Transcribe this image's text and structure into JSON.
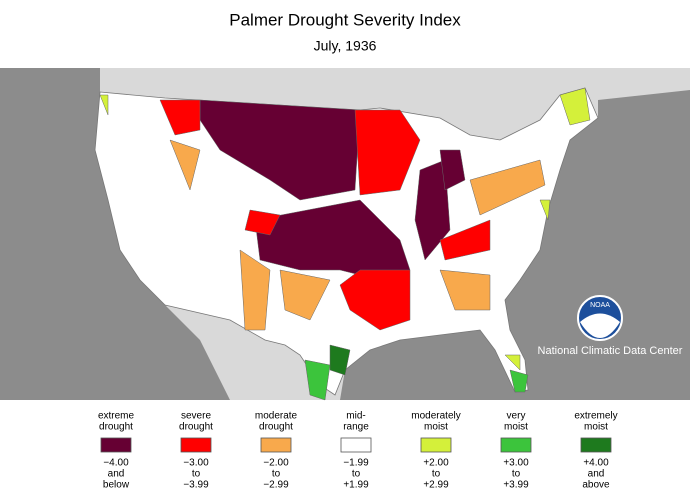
{
  "title": "Palmer Drought Severity Index",
  "subtitle": "July, 1936",
  "legend": [
    {
      "label": [
        "extreme",
        "drought"
      ],
      "range": [
        "−4.00",
        "and",
        "below"
      ],
      "color": "#660033"
    },
    {
      "label": [
        "severe",
        "drought"
      ],
      "range": [
        "−3.00",
        "to",
        "−3.99"
      ],
      "color": "#ff0000"
    },
    {
      "label": [
        "moderate",
        "drought"
      ],
      "range": [
        "−2.00",
        "to",
        "−2.99"
      ],
      "color": "#f8a94c"
    },
    {
      "label": [
        "mid-",
        "range"
      ],
      "range": [
        "−1.99",
        "to",
        "+1.99"
      ],
      "color": "#ffffff"
    },
    {
      "label": [
        "moderately",
        "moist"
      ],
      "range": [
        "+2.00",
        "to",
        "+2.99"
      ],
      "color": "#d4f03a"
    },
    {
      "label": [
        "very",
        "moist"
      ],
      "range": [
        "+3.00",
        "to",
        "+3.99"
      ],
      "color": "#3cc43c"
    },
    {
      "label": [
        "extremely",
        "moist"
      ],
      "range": [
        "+4.00",
        "and",
        "above"
      ],
      "color": "#1e7a1e"
    }
  ],
  "logo": "NOAA",
  "credit": "National Climatic Data Center"
}
